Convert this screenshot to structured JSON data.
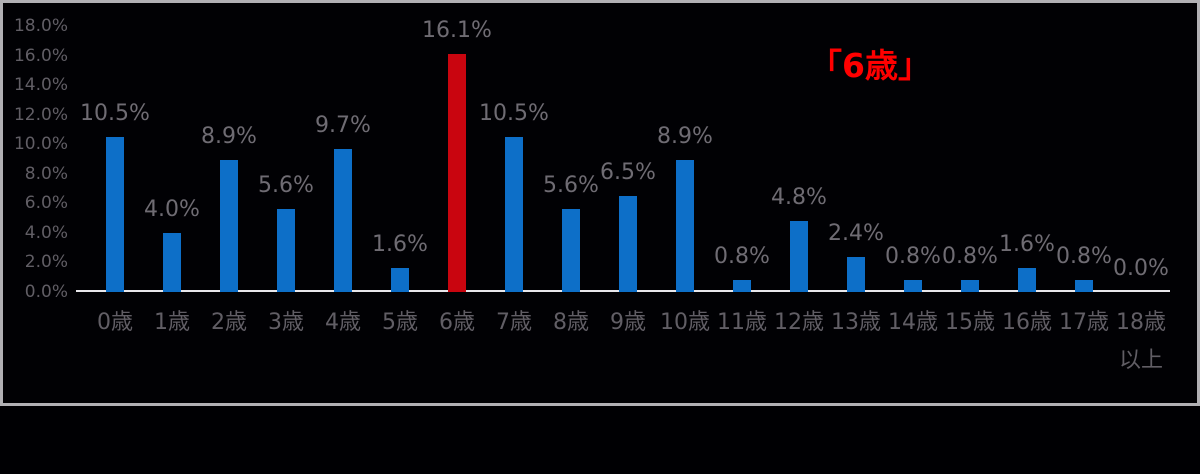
{
  "chart_data": {
    "type": "bar",
    "title": "",
    "categories": [
      "0歳",
      "1歳",
      "2歳",
      "3歳",
      "4歳",
      "5歳",
      "6歳",
      "7歳",
      "8歳",
      "9歳",
      "10歳",
      "11歳",
      "12歳",
      "13歳",
      "14歳",
      "15歳",
      "16歳",
      "17歳",
      "18歳以上"
    ],
    "category_lines": [
      [
        "0歳"
      ],
      [
        "1歳"
      ],
      [
        "2歳"
      ],
      [
        "3歳"
      ],
      [
        "4歳"
      ],
      [
        "5歳"
      ],
      [
        "6歳"
      ],
      [
        "7歳"
      ],
      [
        "8歳"
      ],
      [
        "9歳"
      ],
      [
        "10歳"
      ],
      [
        "11歳"
      ],
      [
        "12歳"
      ],
      [
        "13歳"
      ],
      [
        "14歳"
      ],
      [
        "15歳"
      ],
      [
        "16歳"
      ],
      [
        "17歳"
      ],
      [
        "18歳",
        "以上"
      ]
    ],
    "values": [
      10.5,
      4.0,
      8.9,
      5.6,
      9.7,
      1.6,
      16.1,
      10.5,
      5.6,
      6.5,
      8.9,
      0.8,
      4.8,
      2.4,
      0.8,
      0.8,
      1.6,
      0.8,
      0.0
    ],
    "data_labels": [
      "10.5%",
      "4.0%",
      "8.9%",
      "5.6%",
      "9.7%",
      "1.6%",
      "16.1%",
      "10.5%",
      "5.6%",
      "6.5%",
      "8.9%",
      "0.8%",
      "4.8%",
      "2.4%",
      "0.8%",
      "0.8%",
      "1.6%",
      "0.8%",
      "0.0%"
    ],
    "highlight_index": 6,
    "annotation": "「6歳」",
    "y_ticks": [
      "18.0%",
      "16.0%",
      "14.0%",
      "12.0%",
      "10.0%",
      "8.0%",
      "6.0%",
      "4.0%",
      "2.0%",
      "0.0%"
    ],
    "ylim": [
      0,
      18
    ],
    "xlabel": "",
    "ylabel": "",
    "grid": false,
    "legend": false,
    "colors": {
      "bar": "#0d6fc8",
      "highlight_bar": "#c9050f",
      "annotation_text": "#ff0000",
      "data_label_text": "#6f6c73",
      "axis_tick_text": "#615e65",
      "axis_line": "#e8e7eb",
      "background": "#000003",
      "frame_border": "#b1b0b4"
    }
  }
}
